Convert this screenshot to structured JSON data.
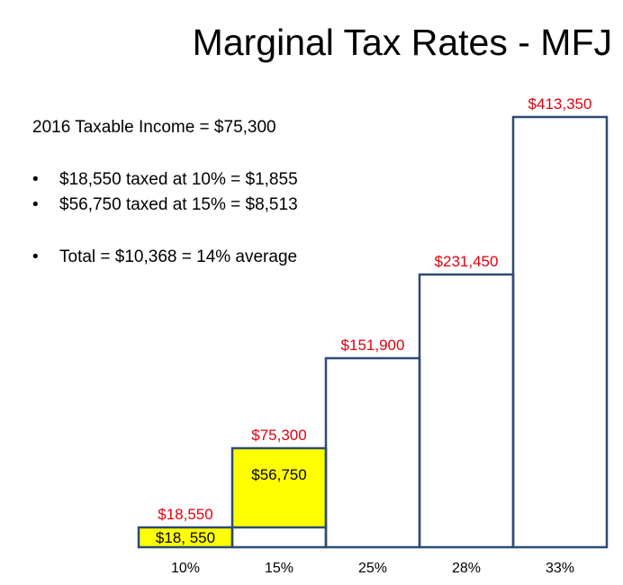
{
  "slide": {
    "title": "Marginal Tax Rates - MFJ",
    "info": {
      "headline": "2016 Taxable Income = $75,300",
      "bullets": [
        {
          "symbol": "•",
          "text": "$18,550 taxed at 10% =  $1,855"
        },
        {
          "symbol": "•",
          "text": "$56,750 taxed at 15% =  $8,513"
        },
        {
          "symbol": "•",
          "text": "Total = $10,368 = 14% average"
        }
      ]
    }
  },
  "colors": {
    "bar_outline": "#2f4b73",
    "threshold_label": "#e0000f",
    "highlight_fill": "#ffff00",
    "text": "#000000"
  },
  "chart_data": {
    "type": "bar",
    "title": "",
    "xlabel": "",
    "ylabel": "",
    "categories": [
      "10%",
      "15%",
      "25%",
      "28%",
      "33%"
    ],
    "thresholds": [
      18550,
      75300,
      151900,
      231450,
      413350
    ],
    "threshold_labels": [
      "$18,550",
      "$75,300",
      "$151,900",
      "$231,450",
      "$413,350"
    ],
    "highlight": [
      {
        "category": "10%",
        "from": 0,
        "to": 18550,
        "label": "$18, 550"
      },
      {
        "category": "15%",
        "from": 18550,
        "to": 75300,
        "label": "$56,750"
      }
    ],
    "scale": "not proportional (stair-step heights)",
    "grid": false,
    "legend": "none"
  }
}
